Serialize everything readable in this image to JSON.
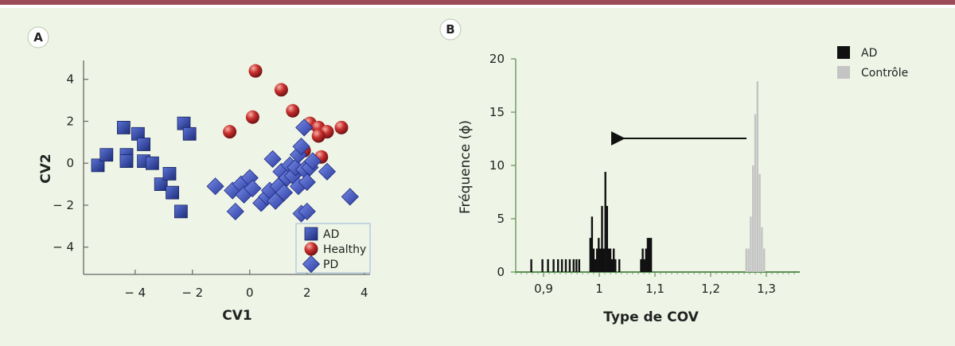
{
  "panel_labels": [
    "A",
    "B"
  ],
  "chart_data": [
    {
      "type": "scatter",
      "panel": "A",
      "xlabel": "CV1",
      "ylabel": "CV2",
      "xlim": [
        -5.8,
        4.2
      ],
      "ylim": [
        -5.3,
        4.9
      ],
      "xticks": [
        {
          "v": -4,
          "label": "− 4"
        },
        {
          "v": -2,
          "label": "− 2"
        },
        {
          "v": 0,
          "label": "0"
        },
        {
          "v": 2,
          "label": "2"
        },
        {
          "v": 4,
          "label": "4"
        }
      ],
      "yticks": [
        {
          "v": 4,
          "label": "4"
        },
        {
          "v": 2,
          "label": "2"
        },
        {
          "v": 0,
          "label": "0"
        },
        {
          "v": -2,
          "label": "− 2"
        },
        {
          "v": -4,
          "label": "− 4"
        }
      ],
      "legend_position": "bottom-right",
      "series": [
        {
          "name": "AD",
          "marker": "square",
          "color": "#2b3f96",
          "points": [
            [
              -5.3,
              -0.1
            ],
            [
              -5.0,
              0.4
            ],
            [
              -4.4,
              1.7
            ],
            [
              -4.3,
              0.4
            ],
            [
              -4.3,
              0.1
            ],
            [
              -3.9,
              1.4
            ],
            [
              -3.7,
              0.9
            ],
            [
              -3.7,
              0.1
            ],
            [
              -3.4,
              0.0
            ],
            [
              -3.1,
              -1.0
            ],
            [
              -2.8,
              -0.5
            ],
            [
              -2.7,
              -1.4
            ],
            [
              -2.4,
              -2.3
            ],
            [
              -2.3,
              1.9
            ],
            [
              -2.1,
              1.4
            ]
          ]
        },
        {
          "name": "Healthy",
          "marker": "sphere",
          "color": "#c22a2a",
          "points": [
            [
              -0.7,
              1.5
            ],
            [
              0.1,
              2.2
            ],
            [
              0.2,
              4.4
            ],
            [
              1.1,
              3.5
            ],
            [
              1.5,
              2.5
            ],
            [
              2.1,
              1.9
            ],
            [
              2.4,
              1.7
            ],
            [
              2.7,
              1.5
            ],
            [
              2.4,
              1.3
            ],
            [
              3.2,
              1.7
            ],
            [
              1.9,
              0.6
            ],
            [
              2.5,
              0.3
            ]
          ]
        },
        {
          "name": "PD",
          "marker": "diamond",
          "color": "#3a4fc0",
          "points": [
            [
              -1.2,
              -1.1
            ],
            [
              -0.6,
              -1.3
            ],
            [
              -0.5,
              -2.3
            ],
            [
              -0.3,
              -1.0
            ],
            [
              -0.2,
              -1.5
            ],
            [
              0.0,
              -0.7
            ],
            [
              0.1,
              -1.2
            ],
            [
              0.4,
              -1.9
            ],
            [
              0.6,
              -1.6
            ],
            [
              0.7,
              -1.3
            ],
            [
              0.8,
              0.2
            ],
            [
              0.9,
              -1.8
            ],
            [
              1.0,
              -1.1
            ],
            [
              1.1,
              -0.4
            ],
            [
              1.2,
              -1.4
            ],
            [
              1.3,
              -0.7
            ],
            [
              1.4,
              -0.1
            ],
            [
              1.5,
              -0.6
            ],
            [
              1.6,
              -0.2
            ],
            [
              1.7,
              -1.1
            ],
            [
              1.7,
              0.4
            ],
            [
              1.8,
              0.8
            ],
            [
              1.8,
              -2.4
            ],
            [
              1.9,
              -0.3
            ],
            [
              2.0,
              -0.9
            ],
            [
              2.0,
              -2.3
            ],
            [
              2.1,
              -0.2
            ],
            [
              2.2,
              0.1
            ],
            [
              2.7,
              -0.4
            ],
            [
              1.9,
              1.7
            ],
            [
              3.5,
              -1.6
            ]
          ]
        }
      ]
    },
    {
      "type": "bar",
      "panel": "B",
      "xlabel": "Type de COV",
      "ylabel": "Fréquence (ϕ)",
      "xlim": [
        0.85,
        1.36
      ],
      "ylim": [
        0,
        20
      ],
      "xticks": [
        {
          "v": 0.9,
          "label": "0,9"
        },
        {
          "v": 1.0,
          "label": "1"
        },
        {
          "v": 1.1,
          "label": "1,1"
        },
        {
          "v": 1.2,
          "label": "1,2"
        },
        {
          "v": 1.3,
          "label": "1,3"
        }
      ],
      "yticks": [
        {
          "v": 0,
          "label": "0"
        },
        {
          "v": 5,
          "label": "5"
        },
        {
          "v": 10,
          "label": "10"
        },
        {
          "v": 15,
          "label": "15"
        },
        {
          "v": 20,
          "label": "20"
        }
      ],
      "annotation": "arrow pointing from the Contrôle peak toward the AD peaks",
      "series": [
        {
          "name": "AD",
          "color": "#111111",
          "x": [
            0.878,
            0.898,
            0.908,
            0.918,
            0.926,
            0.933,
            0.94,
            0.947,
            0.954,
            0.959,
            0.964,
            0.984,
            0.987,
            0.99,
            0.993,
            0.996,
            0.999,
            1.002,
            1.005,
            1.008,
            1.011,
            1.014,
            1.017,
            1.02,
            1.023,
            1.026,
            1.029,
            1.036,
            1.075,
            1.078,
            1.081,
            1.084,
            1.087,
            1.09,
            1.093
          ],
          "values": [
            1.2,
            1.2,
            1.2,
            1.2,
            1.2,
            1.2,
            1.2,
            1.2,
            1.2,
            1.2,
            1.2,
            3.2,
            5.2,
            2.2,
            1.2,
            2.2,
            3.2,
            2.2,
            6.2,
            2.2,
            9.4,
            6.2,
            2.2,
            2.2,
            1.2,
            2.2,
            1.2,
            1.2,
            1.2,
            2.2,
            1.2,
            2.2,
            3.2,
            3.2,
            3.2
          ]
        },
        {
          "name": "Contrôle",
          "color": "#c4c4c4",
          "x": [
            1.264,
            1.268,
            1.272,
            1.276,
            1.28,
            1.284,
            1.288,
            1.292,
            1.296
          ],
          "values": [
            2.2,
            2.2,
            5.2,
            10.0,
            14.8,
            17.9,
            9.2,
            4.2,
            2.2
          ]
        }
      ]
    }
  ]
}
